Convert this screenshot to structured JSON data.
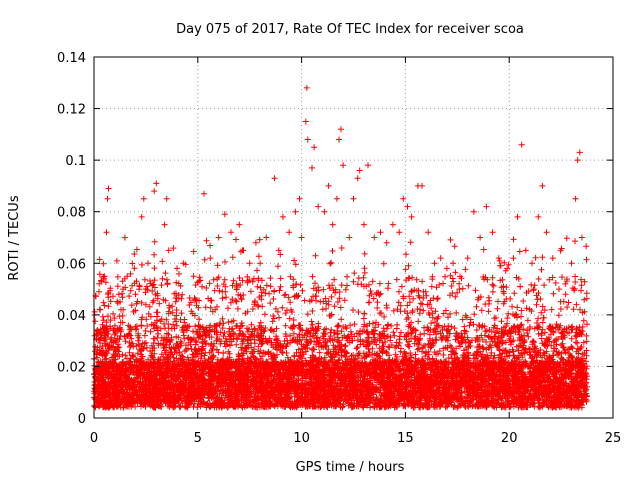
{
  "chart_data": {
    "type": "scatter",
    "title": "Day 075 of 2017, Rate Of TEC Index for receiver scoa",
    "xlabel": "GPS time / hours",
    "ylabel": "ROTI / TECUs",
    "xlim": [
      0,
      25
    ],
    "ylim": [
      0,
      0.14
    ],
    "x_ticks": [
      0,
      5,
      10,
      15,
      20,
      25
    ],
    "x_tick_labels": [
      "0",
      "5",
      "10",
      "15",
      "20",
      "25"
    ],
    "y_ticks": [
      0,
      0.02,
      0.04,
      0.06,
      0.08,
      0.1,
      0.12,
      0.14
    ],
    "y_tick_labels": [
      "0",
      "0.02",
      "0.04",
      "0.06",
      "0.08",
      "0.1",
      "0.12",
      "0.14"
    ],
    "grid": true,
    "marker": "plus",
    "color": "#ff0000",
    "data_time_range": [
      0,
      23.75
    ],
    "series": [
      {
        "points": [
          [
            0.3,
            0.042
          ],
          [
            0.5,
            0.055
          ],
          [
            0.65,
            0.085
          ],
          [
            0.7,
            0.089
          ],
          [
            0.6,
            0.072
          ],
          [
            1.2,
            0.048
          ],
          [
            1.4,
            0.05
          ],
          [
            1.6,
            0.055
          ],
          [
            2.0,
            0.048
          ],
          [
            2.3,
            0.078
          ],
          [
            2.4,
            0.085
          ],
          [
            2.6,
            0.06
          ],
          [
            2.9,
            0.088
          ],
          [
            3.0,
            0.091
          ],
          [
            3.4,
            0.075
          ],
          [
            3.5,
            0.085
          ],
          [
            3.6,
            0.065
          ],
          [
            4.0,
            0.058
          ],
          [
            4.3,
            0.06
          ],
          [
            4.8,
            0.055
          ],
          [
            5.3,
            0.087
          ],
          [
            5.6,
            0.062
          ],
          [
            6.0,
            0.07
          ],
          [
            6.3,
            0.079
          ],
          [
            6.6,
            0.072
          ],
          [
            7.0,
            0.075
          ],
          [
            7.2,
            0.065
          ],
          [
            7.5,
            0.06
          ],
          [
            7.8,
            0.068
          ],
          [
            8.0,
            0.06
          ],
          [
            8.3,
            0.07
          ],
          [
            8.7,
            0.093
          ],
          [
            8.9,
            0.065
          ],
          [
            9.1,
            0.078
          ],
          [
            9.4,
            0.072
          ],
          [
            9.7,
            0.08
          ],
          [
            9.9,
            0.085
          ],
          [
            10.0,
            0.07
          ],
          [
            10.2,
            0.115
          ],
          [
            10.25,
            0.128
          ],
          [
            10.3,
            0.108
          ],
          [
            10.5,
            0.097
          ],
          [
            10.6,
            0.105
          ],
          [
            10.8,
            0.082
          ],
          [
            11.1,
            0.08
          ],
          [
            11.3,
            0.09
          ],
          [
            11.5,
            0.075
          ],
          [
            11.7,
            0.085
          ],
          [
            11.8,
            0.108
          ],
          [
            11.9,
            0.112
          ],
          [
            12.0,
            0.098
          ],
          [
            12.3,
            0.07
          ],
          [
            12.5,
            0.085
          ],
          [
            12.7,
            0.093
          ],
          [
            12.8,
            0.096
          ],
          [
            13.0,
            0.075
          ],
          [
            13.2,
            0.098
          ],
          [
            13.5,
            0.07
          ],
          [
            13.8,
            0.072
          ],
          [
            14.1,
            0.068
          ],
          [
            14.4,
            0.075
          ],
          [
            14.7,
            0.072
          ],
          [
            14.9,
            0.085
          ],
          [
            15.1,
            0.082
          ],
          [
            15.3,
            0.078
          ],
          [
            15.6,
            0.09
          ],
          [
            15.8,
            0.09
          ],
          [
            16.1,
            0.072
          ],
          [
            16.4,
            0.06
          ],
          [
            16.7,
            0.062
          ],
          [
            17.0,
            0.058
          ],
          [
            17.3,
            0.06
          ],
          [
            17.6,
            0.05
          ],
          [
            18.0,
            0.062
          ],
          [
            18.3,
            0.08
          ],
          [
            18.6,
            0.07
          ],
          [
            18.9,
            0.082
          ],
          [
            19.2,
            0.072
          ],
          [
            19.5,
            0.062
          ],
          [
            19.9,
            0.058
          ],
          [
            20.2,
            0.062
          ],
          [
            20.4,
            0.078
          ],
          [
            20.6,
            0.106
          ],
          [
            20.8,
            0.065
          ],
          [
            21.1,
            0.06
          ],
          [
            21.4,
            0.078
          ],
          [
            21.6,
            0.09
          ],
          [
            21.8,
            0.072
          ],
          [
            22.1,
            0.062
          ],
          [
            22.4,
            0.05
          ],
          [
            22.7,
            0.052
          ],
          [
            23.0,
            0.06
          ],
          [
            23.2,
            0.085
          ],
          [
            23.3,
            0.1
          ],
          [
            23.4,
            0.103
          ],
          [
            23.5,
            0.07
          ]
        ]
      }
    ]
  }
}
